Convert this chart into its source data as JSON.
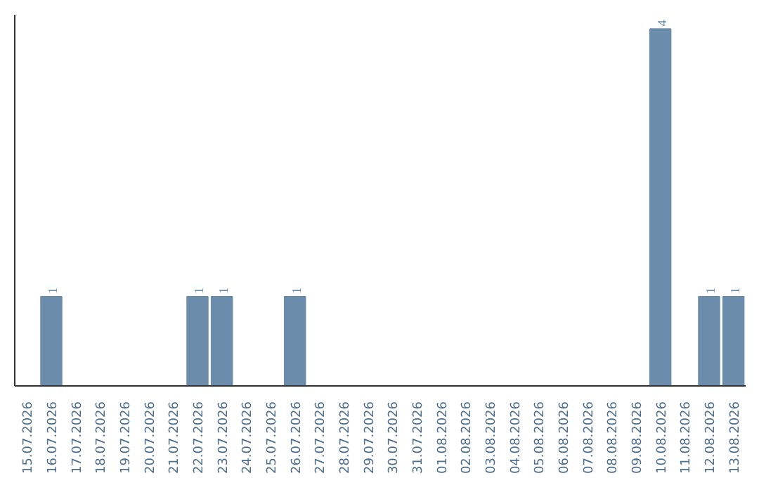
{
  "chart_data": {
    "type": "bar",
    "categories": [
      "15.07.2026",
      "16.07.2026",
      "17.07.2026",
      "18.07.2026",
      "19.07.2026",
      "20.07.2026",
      "21.07.2026",
      "22.07.2026",
      "23.07.2026",
      "24.07.2026",
      "25.07.2026",
      "26.07.2026",
      "27.07.2026",
      "28.07.2026",
      "29.07.2026",
      "30.07.2026",
      "31.07.2026",
      "01.08.2026",
      "02.08.2026",
      "03.08.2026",
      "04.08.2026",
      "05.08.2026",
      "06.08.2026",
      "07.08.2026",
      "08.08.2026",
      "09.08.2026",
      "10.08.2026",
      "11.08.2026",
      "12.08.2026",
      "13.08.2026"
    ],
    "values": [
      0,
      1,
      0,
      0,
      0,
      0,
      0,
      1,
      1,
      0,
      0,
      1,
      0,
      0,
      0,
      0,
      0,
      0,
      0,
      0,
      0,
      0,
      0,
      0,
      0,
      0,
      4,
      0,
      1,
      1
    ],
    "value_labels": [
      null,
      "1",
      null,
      null,
      null,
      null,
      null,
      "1",
      "1",
      null,
      null,
      "1",
      null,
      null,
      null,
      null,
      null,
      null,
      null,
      null,
      null,
      null,
      null,
      null,
      null,
      null,
      "4",
      null,
      "1",
      "1"
    ],
    "color": "#6b8cab"
  }
}
